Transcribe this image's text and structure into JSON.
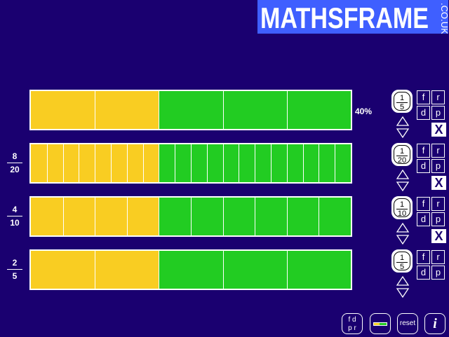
{
  "logo": {
    "main": "MATHSFRAME",
    "side": ".CO.UK"
  },
  "colors": {
    "background": "#1a0070",
    "yellow": "#f9cd22",
    "green": "#22cc22"
  },
  "bars": [
    {
      "divisions": 5,
      "fill_fraction": 0.4
    },
    {
      "divisions": 20,
      "fill_fraction": 0.4
    },
    {
      "divisions": 10,
      "fill_fraction": 0.4
    },
    {
      "divisions": 5,
      "fill_fraction": 0.4
    }
  ],
  "rows": [
    {
      "label": {
        "type": "percent",
        "text": "40%"
      },
      "unit": {
        "num": "1",
        "den": "5"
      },
      "show_x": true
    },
    {
      "label": {
        "type": "fraction",
        "num": "8",
        "den": "20"
      },
      "unit": {
        "num": "1",
        "den": "20"
      },
      "show_x": true
    },
    {
      "label": {
        "type": "fraction",
        "num": "4",
        "den": "10"
      },
      "unit": {
        "num": "1",
        "den": "10"
      },
      "show_x": true
    },
    {
      "label": {
        "type": "fraction",
        "num": "2",
        "den": "5"
      },
      "unit": {
        "num": "1",
        "den": "5"
      },
      "show_x": false
    }
  ],
  "row_buttons": {
    "f": "f",
    "r": "r",
    "d": "d",
    "p": "p",
    "x": "X"
  },
  "toolbar": {
    "fdpr_top": "f d",
    "fdpr_bottom": "p r",
    "reset": "reset",
    "info": "i"
  }
}
